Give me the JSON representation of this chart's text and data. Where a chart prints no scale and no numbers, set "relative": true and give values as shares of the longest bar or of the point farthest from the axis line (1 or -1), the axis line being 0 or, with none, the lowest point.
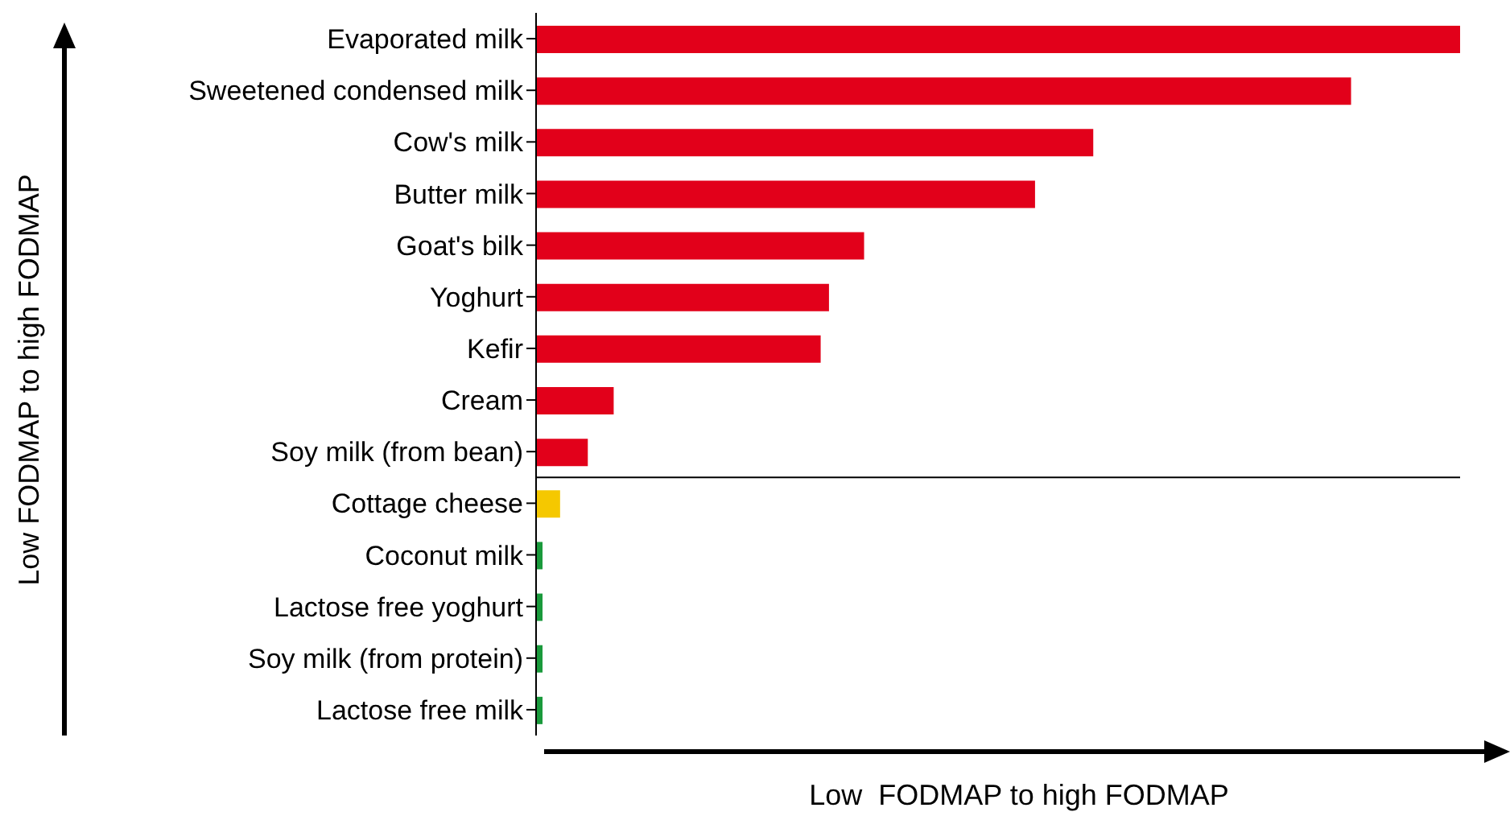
{
  "chart_data": {
    "type": "bar",
    "orientation": "horizontal",
    "relative": true,
    "xlabel": "Low  FODMAP to high FODMAP",
    "ylabel": "Low FODMAP to high FODMAP",
    "categories": [
      "Evaporated milk",
      "Sweetened condensed milk",
      "Cow's milk",
      "Butter milk",
      "Goat's bilk",
      "Yoghurt",
      "Kefir",
      "Cream",
      "Soy milk (from bean)",
      "Cottage cheese",
      "Coconut milk",
      "Lactose free yoghurt",
      "Soy milk (from protein)",
      "Lactose free milk"
    ],
    "values": [
      1,
      0.882,
      0.603,
      0.54,
      0.355,
      0.317,
      0.308,
      0.084,
      0.056,
      0.026,
      0.007,
      0.007,
      0.007,
      0.007
    ],
    "colors": [
      "#e2001a",
      "#e2001a",
      "#e2001a",
      "#e2001a",
      "#e2001a",
      "#e2001a",
      "#e2001a",
      "#e2001a",
      "#e2001a",
      "#f5c800",
      "#1a9a3c",
      "#1a9a3c",
      "#1a9a3c",
      "#1a9a3c"
    ]
  }
}
